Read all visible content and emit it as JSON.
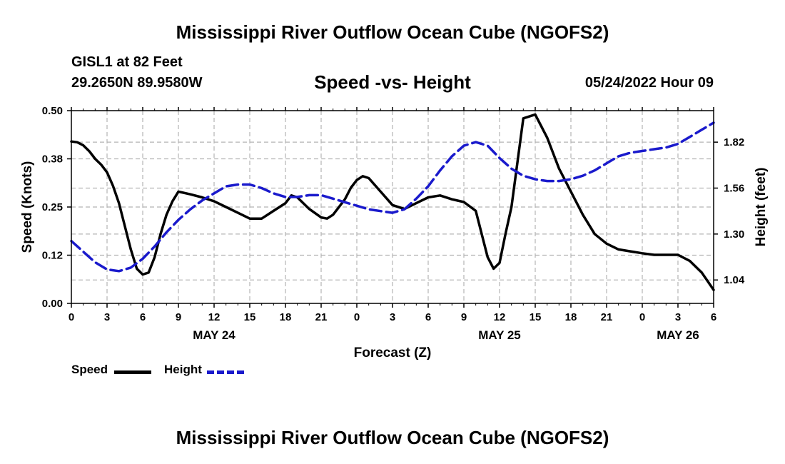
{
  "header": {
    "main_title": "Mississippi River Outflow Ocean Cube (NGOFS2)",
    "station": "GISL1 at 82 Feet",
    "coords": "29.2650N  89.9580W",
    "subtitle": "Speed -vs- Height",
    "datetime": "05/24/2022 Hour 09",
    "bottom_title": "Mississippi River Outflow Ocean Cube (NGOFS2)"
  },
  "chart_data": {
    "type": "line",
    "title": "Speed -vs- Height",
    "xlabel": "Forecast (Z)",
    "ylabel": "Speed (Knots)",
    "y2label": "Height (feet)",
    "xlim": [
      0,
      54
    ],
    "ylim": [
      0,
      0.5
    ],
    "y2lim": [
      0.9075,
      1.9983
    ],
    "x_ticks": [
      0,
      3,
      6,
      9,
      12,
      15,
      18,
      21,
      24,
      27,
      30,
      33,
      36,
      39,
      42,
      45,
      48,
      51,
      54
    ],
    "x_tick_labels": [
      "0",
      "3",
      "6",
      "9",
      "12",
      "15",
      "18",
      "21",
      "0",
      "3",
      "6",
      "9",
      "12",
      "15",
      "18",
      "21",
      "0",
      "3",
      "6"
    ],
    "date_labels": [
      {
        "x": 12,
        "label": "MAY 24"
      },
      {
        "x": 36,
        "label": "MAY 25"
      },
      {
        "x": 51,
        "label": "MAY 26"
      }
    ],
    "y_ticks": [
      0,
      0.125,
      0.25,
      0.375,
      0.5
    ],
    "y_tick_labels": [
      "0.00",
      "0.12",
      "0.25",
      "0.38",
      "0.50"
    ],
    "y2_ticks": [
      1.04,
      1.3,
      1.56,
      1.82
    ],
    "y2_tick_labels": [
      "1.04",
      "1.30",
      "1.56",
      "1.82"
    ],
    "grid": true,
    "legend_position": "bottom-left",
    "series": [
      {
        "name": "Speed",
        "axis": "left",
        "color": "#000000",
        "dash": "solid",
        "x": [
          0,
          0.5,
          1,
          1.5,
          2,
          2.5,
          3,
          3.5,
          4,
          4.5,
          5,
          5.5,
          6,
          6.5,
          7,
          7.5,
          8,
          8.5,
          9,
          10,
          11,
          12,
          13,
          14,
          15,
          16,
          17,
          18,
          18.5,
          19,
          20,
          21,
          21.5,
          22,
          23,
          23.5,
          24,
          24.5,
          25,
          26,
          27,
          28,
          29,
          30,
          31,
          32,
          33,
          34,
          35,
          35.5,
          36,
          36.5,
          37,
          38,
          39,
          40,
          41,
          42,
          43,
          44,
          45,
          46,
          47,
          48,
          49,
          50,
          51,
          52,
          53,
          54
        ],
        "y": [
          0.42,
          0.418,
          0.41,
          0.395,
          0.375,
          0.36,
          0.34,
          0.305,
          0.26,
          0.2,
          0.14,
          0.09,
          0.075,
          0.08,
          0.12,
          0.18,
          0.23,
          0.265,
          0.29,
          0.283,
          0.275,
          0.265,
          0.25,
          0.235,
          0.22,
          0.22,
          0.24,
          0.26,
          0.28,
          0.275,
          0.245,
          0.223,
          0.22,
          0.23,
          0.27,
          0.3,
          0.32,
          0.33,
          0.325,
          0.29,
          0.255,
          0.245,
          0.26,
          0.275,
          0.28,
          0.27,
          0.263,
          0.24,
          0.12,
          0.09,
          0.105,
          0.18,
          0.25,
          0.48,
          0.49,
          0.43,
          0.35,
          0.29,
          0.23,
          0.18,
          0.155,
          0.14,
          0.135,
          0.13,
          0.126,
          0.126,
          0.126,
          0.11,
          0.08,
          0.035
        ]
      },
      {
        "name": "Height",
        "axis": "right",
        "color": "#1a1acc",
        "dash": "dashed",
        "x": [
          0,
          1,
          2,
          3,
          4,
          5,
          6,
          7,
          8,
          9,
          10,
          11,
          12,
          13,
          14,
          15,
          16,
          17,
          18,
          19,
          20,
          21,
          22,
          23,
          24,
          25,
          26,
          27,
          28,
          29,
          30,
          31,
          32,
          33,
          34,
          35,
          36,
          37,
          38,
          39,
          40,
          41,
          42,
          43,
          44,
          45,
          46,
          47,
          48,
          49,
          50,
          51,
          52,
          53,
          54
        ],
        "y": [
          1.26,
          1.2,
          1.14,
          1.1,
          1.09,
          1.11,
          1.16,
          1.23,
          1.31,
          1.38,
          1.44,
          1.49,
          1.53,
          1.57,
          1.58,
          1.58,
          1.56,
          1.53,
          1.51,
          1.51,
          1.52,
          1.52,
          1.5,
          1.48,
          1.46,
          1.44,
          1.43,
          1.42,
          1.44,
          1.5,
          1.57,
          1.66,
          1.74,
          1.8,
          1.82,
          1.8,
          1.73,
          1.67,
          1.63,
          1.61,
          1.6,
          1.6,
          1.61,
          1.63,
          1.66,
          1.7,
          1.74,
          1.76,
          1.77,
          1.78,
          1.79,
          1.81,
          1.85,
          1.89,
          1.93
        ]
      }
    ]
  },
  "legend": {
    "speed_label": "Speed",
    "height_label": "Height"
  }
}
